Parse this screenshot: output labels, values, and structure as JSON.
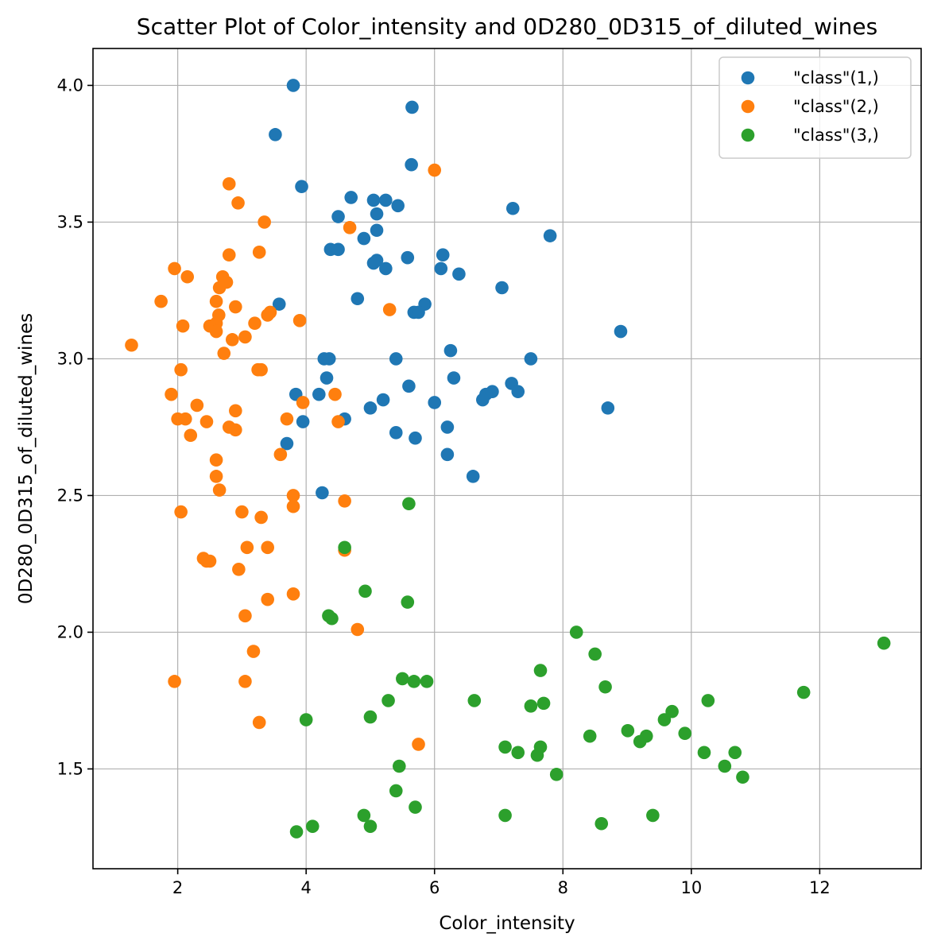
{
  "chart_data": {
    "type": "scatter",
    "title": "Scatter Plot of Color_intensity and 0D280_0D315_of_diluted_wines",
    "xlabel": "Color_intensity",
    "ylabel": "0D280_0D315_of_diluted_wines",
    "xlim": [
      0.68,
      13.58
    ],
    "ylim": [
      1.135,
      4.135
    ],
    "xticks": [
      2,
      4,
      6,
      8,
      10,
      12
    ],
    "yticks": [
      1.5,
      2.0,
      2.5,
      3.0,
      3.5,
      4.0
    ],
    "xtick_labels": [
      "2",
      "4",
      "6",
      "8",
      "10",
      "12"
    ],
    "ytick_labels": [
      "1.5",
      "2.0",
      "2.5",
      "3.0",
      "3.5",
      "4.0"
    ],
    "grid": true,
    "legend_position": "top-right",
    "series": [
      {
        "name": "\"class\"(1,)",
        "color": "#1f77b4",
        "points": [
          [
            3.8,
            4.0
          ],
          [
            5.65,
            3.92
          ],
          [
            3.52,
            3.82
          ],
          [
            5.64,
            3.71
          ],
          [
            3.93,
            3.63
          ],
          [
            4.7,
            3.59
          ],
          [
            5.05,
            3.58
          ],
          [
            5.24,
            3.58
          ],
          [
            5.43,
            3.56
          ],
          [
            7.22,
            3.55
          ],
          [
            5.1,
            3.53
          ],
          [
            4.5,
            3.52
          ],
          [
            5.1,
            3.47
          ],
          [
            7.8,
            3.45
          ],
          [
            4.9,
            3.44
          ],
          [
            4.38,
            3.4
          ],
          [
            4.5,
            3.4
          ],
          [
            6.13,
            3.38
          ],
          [
            5.58,
            3.37
          ],
          [
            5.1,
            3.36
          ],
          [
            5.05,
            3.35
          ],
          [
            5.24,
            3.33
          ],
          [
            6.1,
            3.33
          ],
          [
            6.38,
            3.31
          ],
          [
            7.05,
            3.26
          ],
          [
            4.8,
            3.22
          ],
          [
            3.58,
            3.2
          ],
          [
            5.85,
            3.2
          ],
          [
            5.68,
            3.17
          ],
          [
            5.75,
            3.17
          ],
          [
            8.9,
            3.1
          ],
          [
            6.25,
            3.03
          ],
          [
            4.28,
            3.0
          ],
          [
            4.36,
            3.0
          ],
          [
            5.4,
            3.0
          ],
          [
            7.5,
            3.0
          ],
          [
            4.32,
            2.93
          ],
          [
            6.3,
            2.93
          ],
          [
            7.2,
            2.91
          ],
          [
            5.6,
            2.9
          ],
          [
            6.9,
            2.88
          ],
          [
            7.3,
            2.88
          ],
          [
            3.84,
            2.87
          ],
          [
            4.2,
            2.87
          ],
          [
            6.8,
            2.87
          ],
          [
            5.2,
            2.85
          ],
          [
            6.75,
            2.85
          ],
          [
            6.0,
            2.84
          ],
          [
            5.0,
            2.82
          ],
          [
            8.7,
            2.82
          ],
          [
            4.6,
            2.78
          ],
          [
            3.95,
            2.77
          ],
          [
            6.2,
            2.75
          ],
          [
            5.4,
            2.73
          ],
          [
            5.7,
            2.71
          ],
          [
            3.7,
            2.69
          ],
          [
            6.2,
            2.65
          ],
          [
            6.6,
            2.57
          ],
          [
            4.25,
            2.51
          ]
        ]
      },
      {
        "name": "\"class\"(2,)",
        "color": "#ff7f0e",
        "points": [
          [
            6.0,
            3.69
          ],
          [
            2.8,
            3.64
          ],
          [
            2.94,
            3.57
          ],
          [
            3.35,
            3.5
          ],
          [
            4.68,
            3.48
          ],
          [
            3.27,
            3.39
          ],
          [
            2.8,
            3.38
          ],
          [
            1.95,
            3.33
          ],
          [
            2.15,
            3.3
          ],
          [
            2.7,
            3.3
          ],
          [
            2.76,
            3.28
          ],
          [
            2.65,
            3.26
          ],
          [
            1.74,
            3.21
          ],
          [
            2.6,
            3.21
          ],
          [
            2.9,
            3.19
          ],
          [
            5.3,
            3.18
          ],
          [
            3.4,
            3.16
          ],
          [
            3.44,
            3.17
          ],
          [
            2.64,
            3.16
          ],
          [
            2.6,
            3.13
          ],
          [
            3.2,
            3.13
          ],
          [
            2.5,
            3.12
          ],
          [
            2.08,
            3.12
          ],
          [
            2.6,
            3.1
          ],
          [
            3.9,
            3.14
          ],
          [
            3.05,
            3.08
          ],
          [
            2.85,
            3.07
          ],
          [
            1.28,
            3.05
          ],
          [
            2.72,
            3.02
          ],
          [
            3.25,
            2.96
          ],
          [
            3.3,
            2.96
          ],
          [
            2.05,
            2.96
          ],
          [
            1.9,
            2.87
          ],
          [
            4.45,
            2.87
          ],
          [
            3.95,
            2.84
          ],
          [
            2.3,
            2.83
          ],
          [
            2.9,
            2.81
          ],
          [
            3.7,
            2.78
          ],
          [
            2.0,
            2.78
          ],
          [
            2.12,
            2.78
          ],
          [
            2.45,
            2.77
          ],
          [
            4.5,
            2.77
          ],
          [
            2.8,
            2.75
          ],
          [
            2.9,
            2.74
          ],
          [
            2.2,
            2.72
          ],
          [
            3.6,
            2.65
          ],
          [
            2.6,
            2.63
          ],
          [
            2.6,
            2.57
          ],
          [
            2.65,
            2.52
          ],
          [
            3.8,
            2.5
          ],
          [
            4.6,
            2.48
          ],
          [
            3.8,
            2.46
          ],
          [
            3.0,
            2.44
          ],
          [
            2.05,
            2.44
          ],
          [
            3.3,
            2.42
          ],
          [
            3.08,
            2.31
          ],
          [
            3.4,
            2.31
          ],
          [
            4.6,
            2.3
          ],
          [
            2.4,
            2.27
          ],
          [
            2.45,
            2.26
          ],
          [
            2.5,
            2.26
          ],
          [
            2.95,
            2.23
          ],
          [
            3.8,
            2.14
          ],
          [
            3.4,
            2.12
          ],
          [
            3.05,
            2.06
          ],
          [
            4.8,
            2.01
          ],
          [
            3.18,
            1.93
          ],
          [
            1.95,
            1.82
          ],
          [
            3.05,
            1.82
          ],
          [
            3.27,
            1.67
          ],
          [
            5.75,
            1.59
          ]
        ]
      },
      {
        "name": "\"class\"(3,)",
        "color": "#2ca02c",
        "points": [
          [
            5.6,
            2.47
          ],
          [
            4.6,
            2.31
          ],
          [
            4.92,
            2.15
          ],
          [
            5.58,
            2.11
          ],
          [
            4.35,
            2.06
          ],
          [
            4.4,
            2.05
          ],
          [
            8.21,
            2.0
          ],
          [
            13.0,
            1.96
          ],
          [
            8.5,
            1.92
          ],
          [
            7.65,
            1.86
          ],
          [
            5.5,
            1.83
          ],
          [
            5.68,
            1.82
          ],
          [
            5.88,
            1.82
          ],
          [
            8.66,
            1.8
          ],
          [
            11.75,
            1.78
          ],
          [
            5.28,
            1.75
          ],
          [
            6.62,
            1.75
          ],
          [
            10.26,
            1.75
          ],
          [
            7.7,
            1.74
          ],
          [
            7.5,
            1.73
          ],
          [
            9.7,
            1.71
          ],
          [
            5.0,
            1.69
          ],
          [
            4.0,
            1.68
          ],
          [
            9.58,
            1.68
          ],
          [
            9.01,
            1.64
          ],
          [
            9.9,
            1.63
          ],
          [
            8.42,
            1.62
          ],
          [
            9.3,
            1.62
          ],
          [
            9.2,
            1.6
          ],
          [
            7.1,
            1.58
          ],
          [
            7.65,
            1.58
          ],
          [
            7.3,
            1.56
          ],
          [
            10.2,
            1.56
          ],
          [
            10.68,
            1.56
          ],
          [
            7.6,
            1.55
          ],
          [
            5.45,
            1.51
          ],
          [
            10.52,
            1.51
          ],
          [
            7.9,
            1.48
          ],
          [
            10.8,
            1.47
          ],
          [
            5.4,
            1.42
          ],
          [
            5.7,
            1.36
          ],
          [
            4.9,
            1.33
          ],
          [
            7.1,
            1.33
          ],
          [
            9.4,
            1.33
          ],
          [
            8.6,
            1.3
          ],
          [
            4.1,
            1.29
          ],
          [
            5.0,
            1.29
          ],
          [
            3.85,
            1.27
          ]
        ]
      }
    ]
  }
}
